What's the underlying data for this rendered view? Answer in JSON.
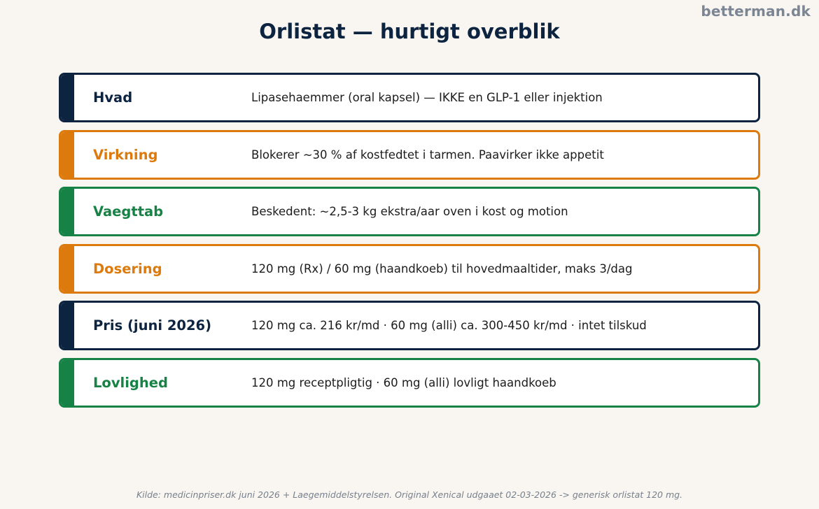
{
  "brand": "betterman.dk",
  "title": "Orlistat — hurtigt overblik",
  "rows": [
    {
      "label": "Hvad",
      "value": "Lipasehaemmer (oral kapsel) — IKKE en GLP-1 eller injektion",
      "color": "#0d2440"
    },
    {
      "label": "Virkning",
      "value": "Blokerer ~30 % af kostfedtet i tarmen. Paavirker ikke appetit",
      "color": "#dc7a0d"
    },
    {
      "label": "Vaegttab",
      "value": "Beskedent: ~2,5-3 kg ekstra/aar oven i kost og motion",
      "color": "#178245"
    },
    {
      "label": "Dosering",
      "value": "120 mg (Rx) / 60 mg (haandkoeb) til hovedmaaltider, maks 3/dag",
      "color": "#dc7a0d"
    },
    {
      "label": "Pris (juni 2026)",
      "value": "120 mg ca. 216 kr/md  ·  60 mg (alli) ca. 300-450 kr/md  ·  intet tilskud",
      "color": "#0d2440"
    },
    {
      "label": "Lovlighed",
      "value": "120 mg receptpligtig  ·  60 mg (alli) lovligt haandkoeb",
      "color": "#178245"
    }
  ],
  "footer": "Kilde: medicinpriser.dk juni 2026 + Laegemiddelstyrelsen. Original Xenical udgaaet 02-03-2026 -> generisk orlistat 120 mg."
}
